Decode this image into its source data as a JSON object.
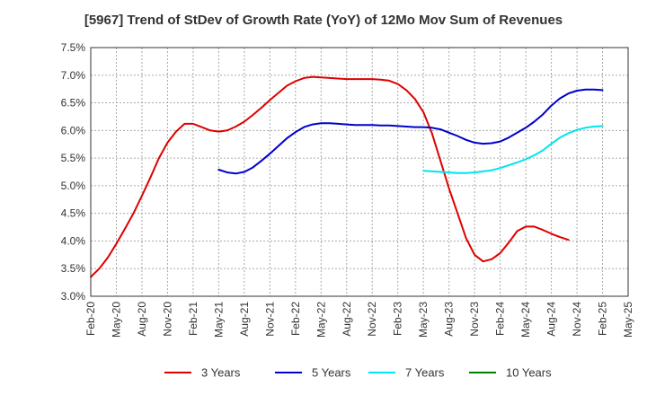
{
  "chart_data": {
    "type": "line",
    "title": "[5967]  Trend of StDev of Growth Rate (YoY) of 12Mo Mov Sum of Revenues",
    "xlabel": "",
    "ylabel": "",
    "ylim": [
      3.0,
      7.5
    ],
    "grid": true,
    "legend_position": "bottom",
    "y_ticks": [
      "3.0%",
      "3.5%",
      "4.0%",
      "4.5%",
      "5.0%",
      "5.5%",
      "6.0%",
      "6.5%",
      "7.0%",
      "7.5%"
    ],
    "x_ticks": [
      "Feb-20",
      "May-20",
      "Aug-20",
      "Nov-20",
      "Feb-21",
      "May-21",
      "Aug-21",
      "Nov-21",
      "Feb-22",
      "May-22",
      "Aug-22",
      "Nov-22",
      "Feb-23",
      "May-23",
      "Aug-23",
      "Nov-23",
      "Feb-24",
      "May-24",
      "Aug-24",
      "Nov-24",
      "Feb-25",
      "May-25"
    ],
    "series": [
      {
        "name": "3 Years",
        "color": "#dd0000",
        "start_month_index": 0,
        "values": [
          3.35,
          3.5,
          3.7,
          3.95,
          4.22,
          4.5,
          4.82,
          5.15,
          5.5,
          5.78,
          5.98,
          6.12,
          6.12,
          6.06,
          6.0,
          5.98,
          6.0,
          6.07,
          6.16,
          6.28,
          6.41,
          6.55,
          6.68,
          6.81,
          6.89,
          6.95,
          6.97,
          6.96,
          6.95,
          6.94,
          6.93,
          6.93,
          6.93,
          6.93,
          6.92,
          6.9,
          6.84,
          6.73,
          6.57,
          6.33,
          5.95,
          5.45,
          4.95,
          4.5,
          4.05,
          3.75,
          3.63,
          3.67,
          3.78,
          3.97,
          4.18,
          4.26,
          4.26,
          4.2,
          4.13,
          4.07,
          4.02
        ]
      },
      {
        "name": "5 Years",
        "color": "#0000cc",
        "start_month_index": 15,
        "values": [
          5.29,
          5.24,
          5.22,
          5.25,
          5.33,
          5.45,
          5.58,
          5.72,
          5.86,
          5.97,
          6.06,
          6.11,
          6.13,
          6.13,
          6.12,
          6.11,
          6.1,
          6.1,
          6.1,
          6.09,
          6.09,
          6.08,
          6.07,
          6.06,
          6.06,
          6.05,
          6.02,
          5.96,
          5.9,
          5.83,
          5.78,
          5.76,
          5.77,
          5.8,
          5.87,
          5.96,
          6.05,
          6.16,
          6.29,
          6.45,
          6.58,
          6.67,
          6.72,
          6.74,
          6.74,
          6.73
        ]
      },
      {
        "name": "7 Years",
        "color": "#00e5ee",
        "start_month_index": 39,
        "values": [
          5.27,
          5.26,
          5.25,
          5.24,
          5.23,
          5.23,
          5.24,
          5.26,
          5.28,
          5.32,
          5.37,
          5.42,
          5.48,
          5.55,
          5.64,
          5.76,
          5.87,
          5.95,
          6.01,
          6.05,
          6.07,
          6.08
        ]
      },
      {
        "name": "10 Years",
        "color": "#008000",
        "start_month_index": 0,
        "values": []
      }
    ]
  }
}
